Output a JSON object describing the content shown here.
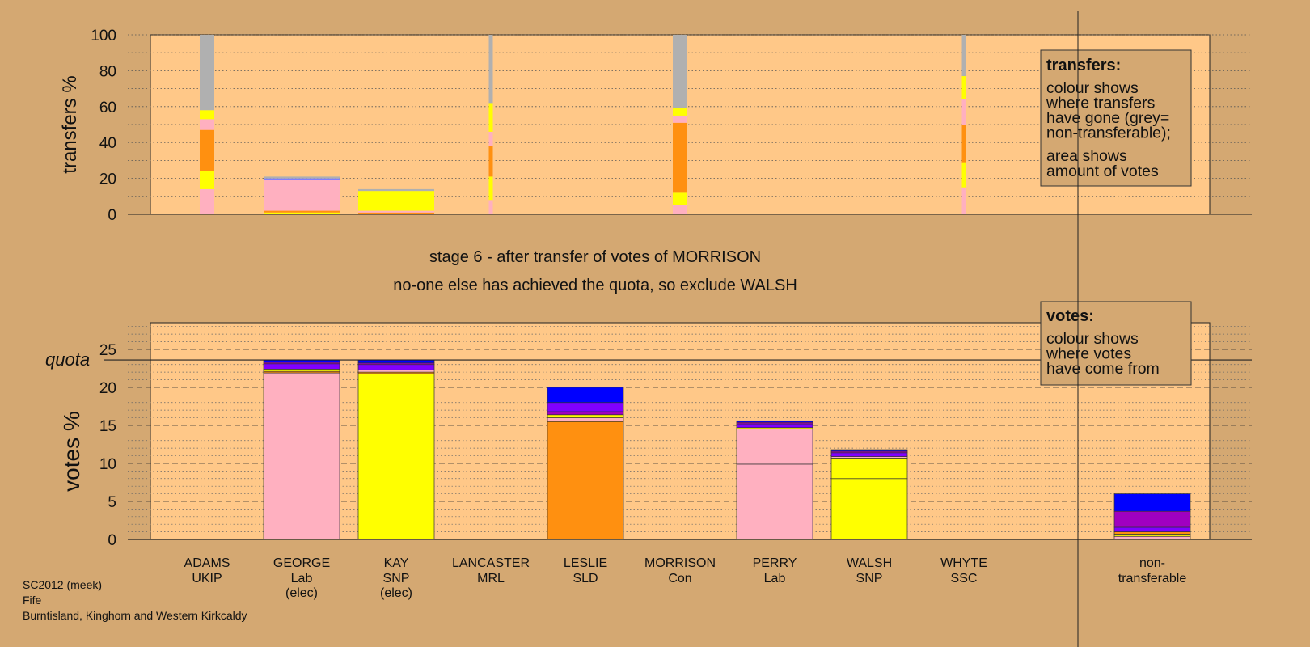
{
  "chart_data": [
    {
      "type": "bar",
      "stacked": true,
      "ylabel": "transfers %",
      "ylim": [
        0,
        100
      ],
      "yticks": [
        0,
        20,
        40,
        60,
        80,
        100
      ],
      "legend": {
        "title": "transfers:",
        "lines": [
          "colour shows",
          "where transfers",
          "have gone (grey=",
          "non-transferable);"
        ],
        "lines2": [
          "area shows",
          "amount of votes"
        ]
      },
      "series_colors": {
        "george": "#ffb0c0",
        "kay": "#ffff00",
        "leslie": "#ff9010",
        "perry": "#ffb0c0",
        "walsh": "#ffff00",
        "nontransferable": "#b0b0b0"
      },
      "columns": [
        {
          "candidate": "ADAMS",
          "width": "narrow",
          "segments": [
            {
              "color": "#ffb0c0",
              "value": 14
            },
            {
              "color": "#ffff00",
              "value": 10
            },
            {
              "color": "#ff9010",
              "value": 23
            },
            {
              "color": "#ffb0c0",
              "value": 6
            },
            {
              "color": "#ffff00",
              "value": 5
            },
            {
              "color": "#b0b0b0",
              "value": 42
            }
          ]
        },
        {
          "candidate": "GEORGE",
          "width": "wide",
          "segments": [
            {
              "color": "#ffff00",
              "value": 1
            },
            {
              "color": "#ff9010",
              "value": 1
            },
            {
              "color": "#ffb0c0",
              "value": 17
            },
            {
              "color": "#8080ff",
              "value": 1
            },
            {
              "color": "#b0b0b0",
              "value": 1
            }
          ]
        },
        {
          "candidate": "KAY",
          "width": "wide",
          "segments": [
            {
              "color": "#ff9010",
              "value": 1
            },
            {
              "color": "#ffb0c0",
              "value": 1
            },
            {
              "color": "#ffff00",
              "value": 11
            },
            {
              "color": "#b0b0b0",
              "value": 1
            }
          ]
        },
        {
          "candidate": "LANCASTER",
          "width": "thin",
          "segments": [
            {
              "color": "#ffb0c0",
              "value": 8
            },
            {
              "color": "#ffff00",
              "value": 13
            },
            {
              "color": "#ff9010",
              "value": 17
            },
            {
              "color": "#ffb0c0",
              "value": 8
            },
            {
              "color": "#ffff00",
              "value": 16
            },
            {
              "color": "#b0b0b0",
              "value": 38
            }
          ]
        },
        {
          "candidate": "MORRISON",
          "width": "narrow",
          "segments": [
            {
              "color": "#ffb0c0",
              "value": 5
            },
            {
              "color": "#ffff00",
              "value": 7
            },
            {
              "color": "#ff9010",
              "value": 39
            },
            {
              "color": "#ffb0c0",
              "value": 4
            },
            {
              "color": "#ffff00",
              "value": 4
            },
            {
              "color": "#b0b0b0",
              "value": 41
            }
          ]
        },
        {
          "candidate": "WHYTE",
          "width": "thin",
          "segments": [
            {
              "color": "#ffb0c0",
              "value": 15
            },
            {
              "color": "#ffff00",
              "value": 14
            },
            {
              "color": "#ff9010",
              "value": 21
            },
            {
              "color": "#ffb0c0",
              "value": 14
            },
            {
              "color": "#ffff00",
              "value": 13
            },
            {
              "color": "#b0b0b0",
              "value": 23
            }
          ]
        }
      ]
    },
    {
      "type": "bar",
      "stacked": true,
      "ylabel": "votes %",
      "ylim": [
        0,
        28.5
      ],
      "yticks": [
        0,
        5,
        10,
        15,
        20,
        25
      ],
      "quota": 23.6,
      "quota_label": "quota",
      "legend": {
        "title": "votes:",
        "lines": [
          "colour shows",
          "where votes",
          "have come from"
        ]
      },
      "categories": [
        {
          "name": "ADAMS",
          "party": "UKIP",
          "status": ""
        },
        {
          "name": "GEORGE",
          "party": "Lab",
          "status": "(elec)"
        },
        {
          "name": "KAY",
          "party": "SNP",
          "status": "(elec)"
        },
        {
          "name": "LANCASTER",
          "party": "MRL",
          "status": ""
        },
        {
          "name": "LESLIE",
          "party": "SLD",
          "status": ""
        },
        {
          "name": "MORRISON",
          "party": "Con",
          "status": ""
        },
        {
          "name": "PERRY",
          "party": "Lab",
          "status": ""
        },
        {
          "name": "WALSH",
          "party": "SNP",
          "status": ""
        },
        {
          "name": "WHYTE",
          "party": "SSC",
          "status": ""
        },
        {
          "name": "non-",
          "party": "transferable",
          "status": ""
        }
      ],
      "bars": [
        {
          "segments": []
        },
        {
          "segments": [
            {
              "color": "#ffb0c0",
              "value": 21.9
            },
            {
              "color": "#ff9010",
              "value": 0.2
            },
            {
              "color": "#ffff00",
              "value": 0.3
            },
            {
              "color": "#8000ff",
              "value": 0.7
            },
            {
              "color": "#a000c0",
              "value": 0.2
            },
            {
              "color": "#0000ff",
              "value": 0.3
            }
          ]
        },
        {
          "segments": [
            {
              "color": "#ffff00",
              "value": 21.8
            },
            {
              "color": "#ff9010",
              "value": 0.2
            },
            {
              "color": "#ffb0c0",
              "value": 0.3
            },
            {
              "color": "#8000ff",
              "value": 0.7
            },
            {
              "color": "#a000c0",
              "value": 0.2
            },
            {
              "color": "#0000ff",
              "value": 0.4
            }
          ]
        },
        {
          "segments": []
        },
        {
          "segments": [
            {
              "color": "#ff9010",
              "value": 15.5
            },
            {
              "color": "#ffb0c0",
              "value": 0.5
            },
            {
              "color": "#ffff00",
              "value": 0.4
            },
            {
              "color": "#a000c0",
              "value": 0.4
            },
            {
              "color": "#8000ff",
              "value": 1.2
            },
            {
              "color": "#0000ff",
              "value": 2.0
            }
          ]
        },
        {
          "segments": []
        },
        {
          "segments": [
            {
              "color": "#ffb0c0",
              "value": 9.9
            },
            {
              "color": "#ffb0c0",
              "value": 4.6
            },
            {
              "color": "#ffff00",
              "value": 0.2
            },
            {
              "color": "#8000ff",
              "value": 0.5
            },
            {
              "color": "#a000c0",
              "value": 0.2
            },
            {
              "color": "#0000ff",
              "value": 0.2
            }
          ]
        },
        {
          "segments": [
            {
              "color": "#ffff00",
              "value": 8.0
            },
            {
              "color": "#ffff00",
              "value": 2.7
            },
            {
              "color": "#ffb0c0",
              "value": 0.2
            },
            {
              "color": "#8000ff",
              "value": 0.5
            },
            {
              "color": "#a000c0",
              "value": 0.2
            },
            {
              "color": "#0000ff",
              "value": 0.2
            }
          ]
        },
        {
          "segments": []
        },
        {
          "segments": [
            {
              "color": "#ffb0c0",
              "value": 0.4
            },
            {
              "color": "#ffff00",
              "value": 0.3
            },
            {
              "color": "#ff9010",
              "value": 0.3
            },
            {
              "color": "#8000ff",
              "value": 0.6
            },
            {
              "color": "#a000c0",
              "value": 2.1
            },
            {
              "color": "#0000ff",
              "value": 2.3
            }
          ]
        }
      ]
    }
  ],
  "stage_text": "stage 6 - after transfer of votes of MORRISON",
  "decision_text": "no-one else has achieved the quota, so exclude WALSH",
  "source": {
    "line1": "SC2012 (meek)",
    "line2": "Fife",
    "line3": "Burntisland, Kinghorn and Western Kirkcaldy"
  },
  "colors": {
    "background": "#d4a872",
    "plot_fill": "#ffc888"
  }
}
